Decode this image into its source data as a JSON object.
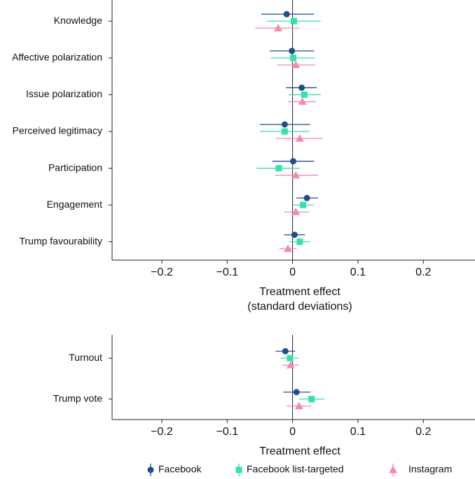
{
  "chart_data": [
    {
      "type": "forest",
      "categories": [
        "Knowledge",
        "Affective polarization",
        "Issue polarization",
        "Perceived legitimacy",
        "Participation",
        "Engagement",
        "Trump favourability"
      ],
      "series": [
        {
          "color": "#1d4f8f",
          "marker": "circle",
          "values": [
            -0.009,
            -0.001,
            0.014,
            -0.012,
            0.001,
            0.022,
            0.003
          ],
          "lower": [
            -0.048,
            -0.035,
            -0.01,
            -0.05,
            -0.031,
            0.006,
            -0.013
          ],
          "upper": [
            0.033,
            0.033,
            0.037,
            0.027,
            0.033,
            0.039,
            0.019
          ]
        },
        {
          "color": "#2ee3ad",
          "marker": "square",
          "values": [
            0.002,
            0.001,
            0.018,
            -0.012,
            -0.021,
            0.016,
            0.011
          ],
          "lower": [
            -0.039,
            -0.033,
            -0.006,
            -0.05,
            -0.055,
            0.0,
            -0.005
          ],
          "upper": [
            0.043,
            0.034,
            0.043,
            0.026,
            0.011,
            0.032,
            0.027
          ]
        },
        {
          "color": "#f58aab",
          "marker": "triangle",
          "values": [
            -0.022,
            0.005,
            0.015,
            0.011,
            0.005,
            0.005,
            -0.007
          ],
          "lower": [
            -0.057,
            -0.024,
            -0.007,
            -0.025,
            -0.027,
            -0.013,
            -0.02
          ],
          "upper": [
            0.011,
            0.035,
            0.036,
            0.046,
            0.039,
            0.025,
            0.006
          ]
        }
      ],
      "xlim": [
        -0.276,
        0.279
      ],
      "xticks": [
        {
          "value": -0.2,
          "label": "−0.2"
        },
        {
          "value": -0.1,
          "label": "−0.1"
        },
        0,
        0.1,
        0.2
      ],
      "reference_line": 0,
      "xlabel": [
        "Treatment effect",
        "(standard deviations)"
      ]
    },
    {
      "type": "forest",
      "categories": [
        "Turnout",
        "Trump vote"
      ],
      "series": [
        {
          "name": "Facebook",
          "color": "#1d4f8f",
          "marker": "circle",
          "values": [
            -0.011,
            0.006
          ],
          "lower": [
            -0.026,
            -0.014
          ],
          "upper": [
            0.004,
            0.027
          ]
        },
        {
          "name": "Facebook list-targeted",
          "color": "#2ee3ad",
          "marker": "square",
          "values": [
            -0.004,
            0.029
          ],
          "lower": [
            -0.018,
            0.01
          ],
          "upper": [
            0.009,
            0.049
          ]
        },
        {
          "name": "Instagram",
          "color": "#f58aab",
          "marker": "triangle",
          "values": [
            -0.003,
            0.01
          ],
          "lower": [
            -0.016,
            -0.009
          ],
          "upper": [
            0.01,
            0.029
          ]
        }
      ],
      "xlim": [
        -0.276,
        0.279
      ],
      "xticks": [
        {
          "value": -0.2,
          "label": "−0.2"
        },
        {
          "value": -0.1,
          "label": "−0.1"
        },
        0,
        0.1,
        0.2
      ],
      "reference_line": 0,
      "xlabel": [
        "Treatment effect"
      ],
      "legend": "bottom"
    }
  ]
}
